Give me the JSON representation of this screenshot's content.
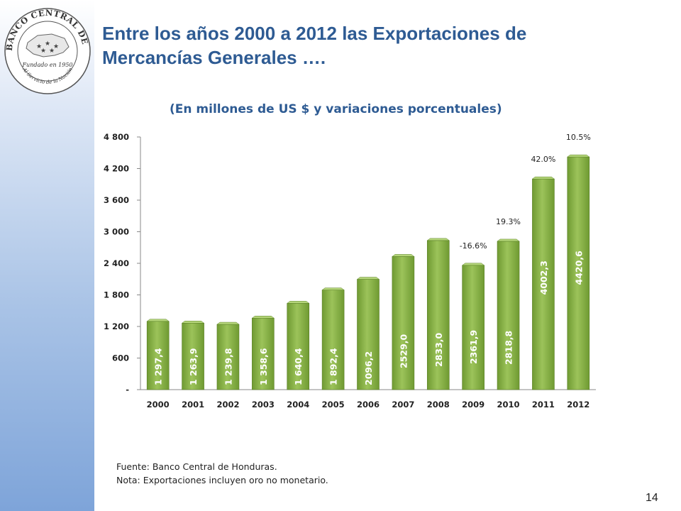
{
  "slide": {
    "title_line1": "Entre los años 2000 a 2012 las Exportaciones de",
    "title_line2": "Mercancías Generales ….",
    "subtitle": "(En millones de US $ y variaciones porcentuales)",
    "source": "Fuente: Banco Central de Honduras.",
    "note": "Nota: Exportaciones incluyen oro no monetario.",
    "page_number": "14"
  },
  "logo": {
    "ring_text_top": "BANCO CENTRAL DE HONDURAS",
    "founded": "Fundado en 1950",
    "motto": "Al Servicio de la Nación"
  },
  "colors": {
    "title": "#2e5b93",
    "bar": "#6f9a32",
    "bar_highlight": "#9cc35a",
    "bar_top": "#b5d67a"
  },
  "chart_data": {
    "type": "bar",
    "categories": [
      "2000",
      "2001",
      "2002",
      "2003",
      "2004",
      "2005",
      "2006",
      "2007",
      "2008",
      "2009",
      "2010",
      "2011",
      "2012"
    ],
    "values": [
      1297.4,
      1263.9,
      1239.8,
      1358.6,
      1640.4,
      1892.4,
      2096.2,
      2529.0,
      2833.0,
      2361.9,
      2818.8,
      4002.3,
      4420.6
    ],
    "value_labels": [
      "1 297,4",
      "1 263,9",
      "1 239,8",
      "1 358,6",
      "1 640,4",
      "1 892,4",
      "2096,2",
      "2529,0",
      "2833,0",
      "2361,9",
      "2818,8",
      "4002,3",
      "4420,6"
    ],
    "annotations": [
      {
        "category": "2009",
        "text": "-16.6%"
      },
      {
        "category": "2010",
        "text": "19.3%"
      },
      {
        "category": "2011",
        "text": "42.0%"
      },
      {
        "category": "2012",
        "text": "10.5%"
      }
    ],
    "ylim": [
      0,
      4800
    ],
    "yticks": [
      0,
      600,
      1200,
      1800,
      2400,
      3000,
      3600,
      4200,
      4800
    ],
    "ytick_labels": [
      "-",
      "600",
      "1 200",
      "1 800",
      "2 400",
      "3 000",
      "3 600",
      "4 200",
      "4 800"
    ],
    "grid": false,
    "legend": "none"
  }
}
